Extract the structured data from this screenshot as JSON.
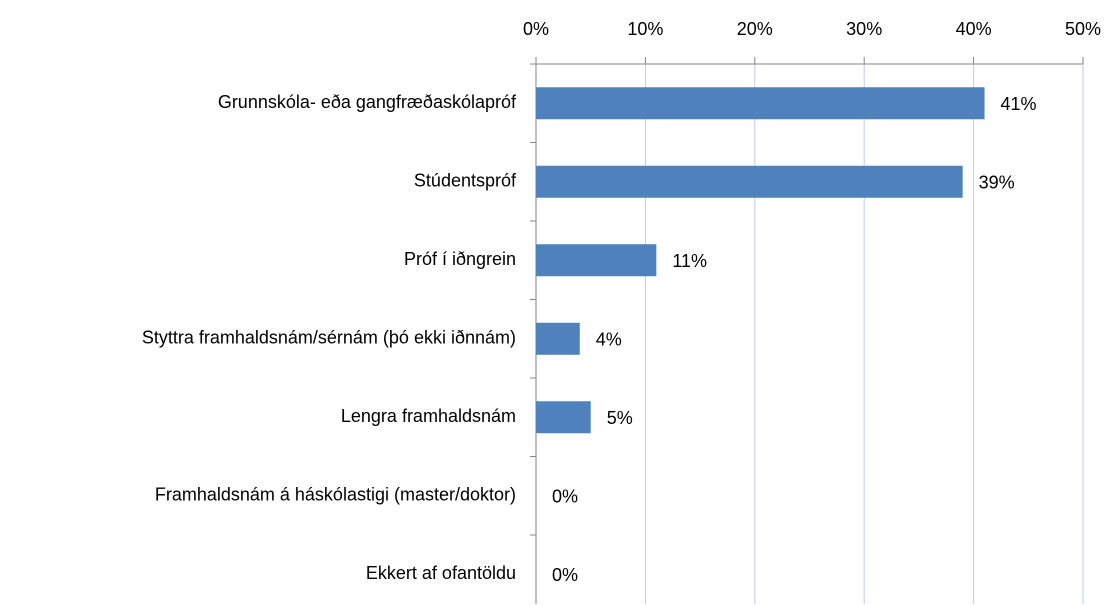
{
  "chart_data": {
    "type": "bar",
    "orientation": "horizontal",
    "categories": [
      "Grunnskóla- eða gangfræðaskólapróf",
      "Stúdentspróf",
      "Próf í iðngrein",
      "Styttra framhaldsnám/sérnám (þó ekki iðnnám)",
      "Lengra framhaldsnám",
      "Framhaldsnám á háskólastigi (master/doktor)",
      "Ekkert af ofantöldu"
    ],
    "values": [
      41,
      39,
      11,
      4,
      5,
      0,
      0
    ],
    "value_labels": [
      "41%",
      "39%",
      "11%",
      "4%",
      "5%",
      "0%",
      "0%"
    ],
    "color": "#4f81bd",
    "xlim": [
      0,
      50
    ],
    "xticks": [
      {
        "value": 0,
        "label": "0%"
      },
      {
        "value": 10,
        "label": "10%"
      },
      {
        "value": 20,
        "label": "20%"
      },
      {
        "value": 30,
        "label": "30%"
      },
      {
        "value": 40,
        "label": "40%"
      },
      {
        "value": 50,
        "label": "50%"
      }
    ],
    "grid": true
  }
}
